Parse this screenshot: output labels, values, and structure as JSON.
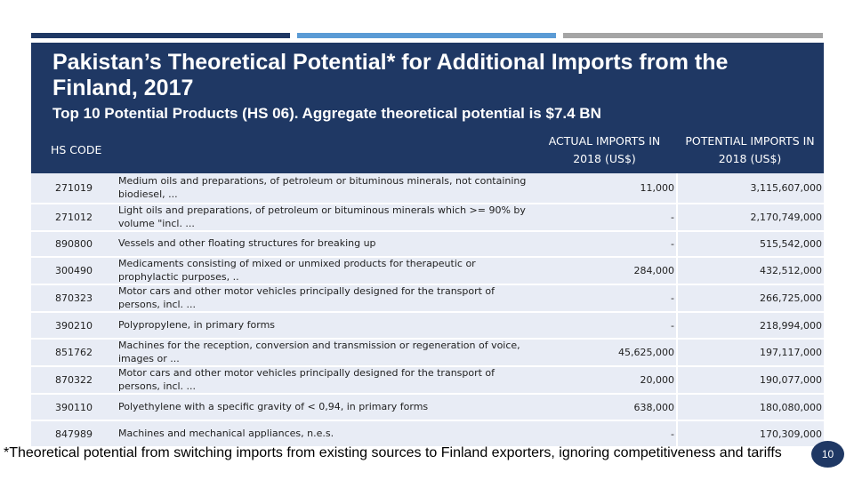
{
  "slide": {
    "title": "Pakistan’s Theoretical Potential* for Additional Imports from the Finland, 2017",
    "subtitle": "Top 10 Potential Products (HS 06). Aggregate theoretical potential is $7.4 BN",
    "footnote": "*Theoretical potential from switching imports from existing sources to Finland exporters, ignoring competitiveness and tariffs",
    "page_number": "10",
    "colors": {
      "header_bg": "#1f3864",
      "accent_blue": "#5b9bd5",
      "accent_gray": "#a5a5a5",
      "row_bg": "#e8ecf5"
    }
  },
  "table": {
    "headers": {
      "hs_code": "HS CODE",
      "description": "",
      "actual": "ACTUAL IMPORTS IN 2018 (US$)",
      "potential": "POTENTIAL IMPORTS IN 2018 (US$)"
    },
    "rows": [
      {
        "code": "271019",
        "description": "Medium oils and preparations, of petroleum or bituminous minerals, not containing biodiesel, ...",
        "actual": "11,000",
        "potential": "3,115,607,000"
      },
      {
        "code": "271012",
        "description": "Light oils and preparations, of petroleum or bituminous minerals which >= 90% by volume \"incl. ...",
        "actual": "-",
        "potential": "2,170,749,000"
      },
      {
        "code": "890800",
        "description": "Vessels and other floating structures for breaking up",
        "actual": "-",
        "potential": "515,542,000"
      },
      {
        "code": "300490",
        "description": "Medicaments consisting of mixed or unmixed products for therapeutic or prophylactic purposes, ..",
        "actual": "284,000",
        "potential": "432,512,000"
      },
      {
        "code": "870323",
        "description": "Motor cars and other motor vehicles principally designed for the transport of persons, incl. ...",
        "actual": "-",
        "potential": "266,725,000"
      },
      {
        "code": "390210",
        "description": "Polypropylene, in primary forms",
        "actual": "-",
        "potential": "218,994,000"
      },
      {
        "code": "851762",
        "description": "Machines for the reception, conversion and transmission or regeneration of voice, images or ...",
        "actual": "45,625,000",
        "potential": "197,117,000"
      },
      {
        "code": "870322",
        "description": "Motor cars and other motor vehicles principally designed for the transport of persons, incl. ...",
        "actual": "20,000",
        "potential": "190,077,000"
      },
      {
        "code": "390110",
        "description": "Polyethylene with a specific gravity of < 0,94, in primary forms",
        "actual": "638,000",
        "potential": "180,080,000"
      },
      {
        "code": "847989",
        "description": "Machines and mechanical appliances, n.e.s.",
        "actual": "-",
        "potential": "170,309,000"
      }
    ]
  }
}
